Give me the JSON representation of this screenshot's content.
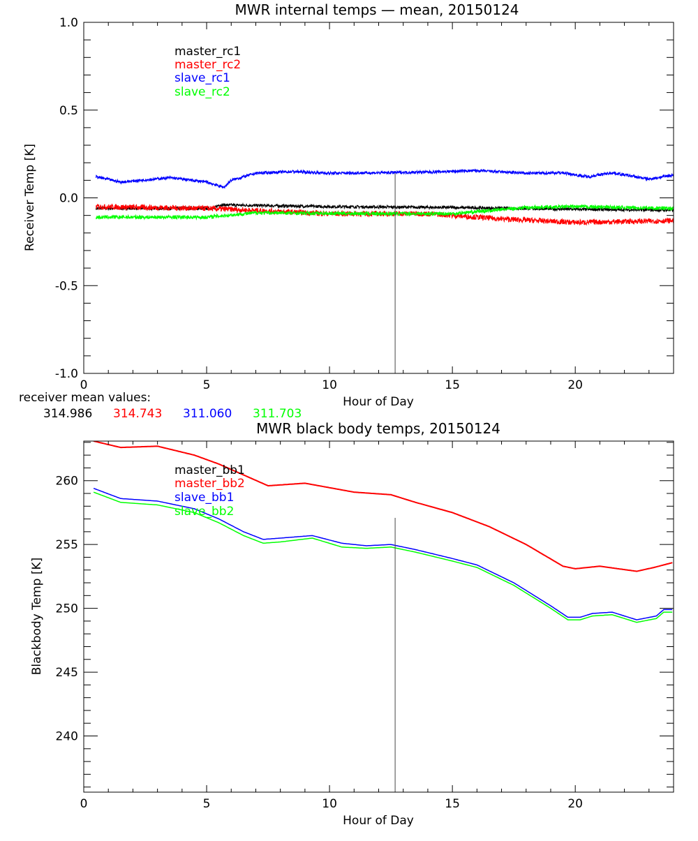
{
  "chart_data": [
    {
      "type": "line",
      "title": "MWR internal temps — mean, 20150124",
      "xlabel": "Hour of Day",
      "ylabel": "Receiver Temp [K]",
      "xlim": [
        0,
        24
      ],
      "ylim": [
        -1.0,
        1.0
      ],
      "xticks": [
        0,
        5,
        10,
        15,
        20
      ],
      "yticks": [
        "-1.0",
        "-0.5",
        "0.0",
        "0.5",
        "1.0"
      ],
      "grid": false,
      "legend_position": "top-left",
      "marker_line_hour": 12.67,
      "series": [
        {
          "name": "master_rc1",
          "color": "#000000",
          "noise": 0.008,
          "x": [
            0.5,
            5.3,
            5.5,
            10,
            15,
            20,
            24
          ],
          "y": [
            -0.06,
            -0.06,
            -0.04,
            -0.05,
            -0.055,
            -0.065,
            -0.07
          ]
        },
        {
          "name": "master_rc2",
          "color": "#ff0000",
          "noise": 0.015,
          "x": [
            0.5,
            5,
            10,
            14,
            17,
            20,
            24
          ],
          "y": [
            -0.05,
            -0.06,
            -0.09,
            -0.09,
            -0.12,
            -0.14,
            -0.13
          ]
        },
        {
          "name": "slave_rc1",
          "color": "#0000ff",
          "noise": 0.008,
          "x": [
            0.5,
            1.5,
            3.5,
            5,
            5.7,
            6,
            7,
            8.5,
            10,
            12,
            14,
            16,
            18,
            19.5,
            20.5,
            21.5,
            23,
            24
          ],
          "y": [
            0.12,
            0.09,
            0.115,
            0.09,
            0.06,
            0.1,
            0.14,
            0.15,
            0.14,
            0.143,
            0.147,
            0.155,
            0.14,
            0.143,
            0.12,
            0.143,
            0.107,
            0.13
          ]
        },
        {
          "name": "slave_rc2",
          "color": "#00ff00",
          "noise": 0.01,
          "x": [
            0.5,
            5,
            7,
            12,
            15,
            18,
            20,
            24
          ],
          "y": [
            -0.11,
            -0.11,
            -0.085,
            -0.09,
            -0.09,
            -0.055,
            -0.05,
            -0.06
          ]
        }
      ],
      "annotation": {
        "label": "receiver mean values:",
        "values": [
          {
            "text": "314.986",
            "color": "#000000"
          },
          {
            "text": "314.743",
            "color": "#ff0000"
          },
          {
            "text": "311.060",
            "color": "#0000ff"
          },
          {
            "text": "311.703",
            "color": "#00ff00"
          }
        ]
      }
    },
    {
      "type": "line",
      "title": "MWR black body temps, 20150124",
      "xlabel": "Hour of Day",
      "ylabel": "Blackbody Temp [K]",
      "xlim": [
        0,
        24
      ],
      "ylim": [
        235.6,
        263.1
      ],
      "xticks": [
        0,
        5,
        10,
        15,
        20
      ],
      "yticks": [
        "240",
        "245",
        "250",
        "255",
        "260"
      ],
      "grid": false,
      "legend_position": "top-left",
      "marker_line_hour": 12.67,
      "series": [
        {
          "name": "master_bb1",
          "color": "#000000",
          "x": [
            0.4,
            1.5,
            3,
            4.5,
            5.5,
            7.5,
            9,
            11,
            12.5,
            13.5,
            15,
            16.5,
            18,
            19.5,
            20,
            21,
            22.5,
            23.2,
            24
          ],
          "y": [
            263.1,
            262.6,
            262.7,
            262.0,
            261.3,
            259.6,
            259.8,
            259.1,
            258.9,
            258.3,
            257.5,
            256.4,
            255.0,
            253.3,
            253.1,
            253.3,
            252.9,
            253.2,
            253.6
          ]
        },
        {
          "name": "master_bb2",
          "color": "#ff0000",
          "x": [
            0.4,
            1.5,
            3,
            4.5,
            5.5,
            7.5,
            9,
            11,
            12.5,
            13.5,
            15,
            16.5,
            18,
            19.5,
            20,
            21,
            22.5,
            23.2,
            24
          ],
          "y": [
            263.1,
            262.6,
            262.7,
            262.0,
            261.3,
            259.6,
            259.8,
            259.1,
            258.9,
            258.3,
            257.5,
            256.4,
            255.0,
            253.3,
            253.1,
            253.3,
            252.9,
            253.2,
            253.6
          ]
        },
        {
          "name": "slave_bb1",
          "color": "#0000ff",
          "x": [
            0.4,
            1.5,
            3,
            4.5,
            5.5,
            6.5,
            7.3,
            8,
            9.3,
            10.5,
            11.5,
            12.5,
            13.5,
            15,
            16,
            17.5,
            19,
            19.7,
            20.2,
            20.7,
            21.5,
            22.5,
            23.3,
            23.6,
            24
          ],
          "y": [
            259.4,
            258.6,
            258.4,
            257.8,
            257.0,
            256.0,
            255.4,
            255.5,
            255.7,
            255.1,
            254.9,
            255.0,
            254.6,
            253.9,
            253.4,
            252.0,
            250.2,
            249.3,
            249.3,
            249.6,
            249.7,
            249.1,
            249.4,
            249.9,
            249.9
          ]
        },
        {
          "name": "slave_bb2",
          "color": "#00ff00",
          "x": [
            0.4,
            1.5,
            3,
            4.5,
            5.5,
            6.5,
            7.3,
            8,
            9.3,
            10.5,
            11.5,
            12.5,
            13.5,
            15,
            16,
            17.5,
            19,
            19.7,
            20.2,
            20.7,
            21.5,
            22.5,
            23.3,
            23.6,
            24
          ],
          "y": [
            259.1,
            258.3,
            258.1,
            257.5,
            256.7,
            255.7,
            255.1,
            255.2,
            255.5,
            254.8,
            254.7,
            254.8,
            254.4,
            253.7,
            253.2,
            251.8,
            250.0,
            249.1,
            249.1,
            249.4,
            249.5,
            248.9,
            249.2,
            249.7,
            249.7
          ]
        }
      ]
    }
  ]
}
